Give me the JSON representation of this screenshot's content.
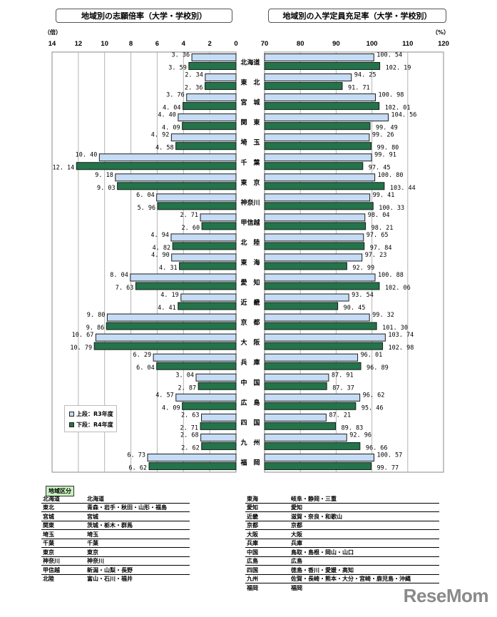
{
  "chart_data": [
    {
      "type": "bar",
      "orientation": "horizontal",
      "title": "地域別の志願倍率（大学・学校別）",
      "unit_label": "（倍）",
      "xlim": [
        0,
        14
      ],
      "x_reversed": true,
      "ticks": [
        "14",
        "12",
        "10",
        "8",
        "6",
        "4",
        "2",
        "0"
      ],
      "categories": [
        "北海道",
        "東　北",
        "宮　城",
        "関　東",
        "埼　玉",
        "千　葉",
        "東　京",
        "神奈川",
        "甲信越",
        "北　陸",
        "東　海",
        "愛　知",
        "近　畿",
        "京　都",
        "大　阪",
        "兵　庫",
        "中　国",
        "広　島",
        "四　国",
        "九　州",
        "福　岡"
      ],
      "series": [
        {
          "name": "上段：R3年度",
          "values": [
            3.36,
            2.34,
            3.76,
            4.4,
            4.92,
            10.4,
            9.18,
            6.04,
            2.71,
            4.94,
            4.9,
            8.04,
            4.19,
            9.8,
            10.67,
            6.29,
            3.04,
            4.57,
            2.63,
            2.68,
            6.73
          ],
          "labels": [
            "3. 36",
            "2. 34",
            "3. 76",
            "4. 40",
            "4. 92",
            "10. 40",
            "9. 18",
            "6. 04",
            "2. 71",
            "4. 94",
            "4. 90",
            "8. 04",
            "4. 19",
            "9. 80",
            "10. 67",
            "6. 29",
            "3. 04",
            "4. 57",
            "2. 63",
            "2. 68",
            "6. 73"
          ]
        },
        {
          "name": "下段：R4年度",
          "values": [
            3.59,
            2.36,
            4.04,
            4.09,
            4.58,
            12.14,
            9.03,
            5.96,
            2.6,
            4.82,
            4.31,
            7.63,
            4.41,
            9.86,
            10.79,
            6.04,
            2.87,
            4.09,
            2.71,
            2.62,
            6.62
          ],
          "labels": [
            "3. 59",
            "2. 36",
            "4. 04",
            "4. 09",
            "4. 58",
            "12. 14",
            "9. 03",
            "5. 96",
            "2. 60",
            "4. 82",
            "4. 31",
            "7. 63",
            "4. 41",
            "9. 86",
            "10. 79",
            "6. 04",
            "2. 87",
            "4. 09",
            "2. 71",
            "2. 62",
            "6. 62"
          ]
        }
      ],
      "grid": true,
      "legend": "bottom-left"
    },
    {
      "type": "bar",
      "orientation": "horizontal",
      "title": "地域別の入学定員充足率（大学・学校別）",
      "unit_label": "（%）",
      "xlim": [
        70,
        120
      ],
      "ticks": [
        "70",
        "80",
        "90",
        "100",
        "110",
        "120"
      ],
      "categories": [
        "北海道",
        "東　北",
        "宮　城",
        "関　東",
        "埼　玉",
        "千　葉",
        "東　京",
        "神奈川",
        "甲信越",
        "北　陸",
        "東　海",
        "愛　知",
        "近　畿",
        "京　都",
        "大　阪",
        "兵　庫",
        "中　国",
        "広　島",
        "四　国",
        "九　州",
        "福　岡"
      ],
      "series": [
        {
          "name": "上段：R3年度",
          "values": [
            100.54,
            94.25,
            100.98,
            104.56,
            99.26,
            99.91,
            100.8,
            99.41,
            98.04,
            97.65,
            97.23,
            100.88,
            93.54,
            99.32,
            103.74,
            96.01,
            87.91,
            96.62,
            87.21,
            92.96,
            100.57
          ],
          "labels": [
            "100. 54",
            "94. 25",
            "100. 98",
            "104. 56",
            "99. 26",
            "99. 91",
            "100. 80",
            "99. 41",
            "98. 04",
            "97. 65",
            "97. 23",
            "100. 88",
            "93. 54",
            "99. 32",
            "103. 74",
            "96. 01",
            "87. 91",
            "96. 62",
            "87. 21",
            "92. 96",
            "100. 57"
          ]
        },
        {
          "name": "下段：R4年度",
          "values": [
            102.19,
            91.71,
            102.01,
            99.49,
            99.8,
            97.45,
            103.44,
            100.33,
            98.21,
            97.84,
            92.99,
            102.06,
            90.45,
            101.3,
            102.98,
            96.89,
            87.37,
            95.46,
            89.83,
            96.66,
            99.77
          ],
          "labels": [
            "102. 19",
            "91. 71",
            "102. 01",
            "99. 49",
            "99. 80",
            "97. 45",
            "103. 44",
            "100. 33",
            "98. 21",
            "97. 84",
            "92. 99",
            "102. 06",
            "90. 45",
            "101. 30",
            "102. 98",
            "96. 89",
            "87. 37",
            "95. 46",
            "89. 83",
            "96. 66",
            "99. 77"
          ]
        }
      ],
      "grid": true
    }
  ],
  "legend": {
    "items": [
      "上段：R3年度",
      "下段：R4年度"
    ],
    "colors": [
      "#c6dcf5",
      "#23744a"
    ]
  },
  "colors": {
    "r3_fill": "#c6dcf5",
    "r4_fill": "#23744a",
    "bar_stroke": "#1b1b1b",
    "grid": "#b4b4b4"
  },
  "region_table": {
    "heading": "地域区分",
    "left": [
      [
        "北海道",
        "北海道"
      ],
      [
        "東北",
        "青森・岩手・秋田・山形・福島"
      ],
      [
        "宮城",
        "宮城"
      ],
      [
        "関東",
        "茨城・栃木・群馬"
      ],
      [
        "埼玉",
        "埼玉"
      ],
      [
        "千葉",
        "千葉"
      ],
      [
        "東京",
        "東京"
      ],
      [
        "神奈川",
        "神奈川"
      ],
      [
        "甲信越",
        "新潟・山梨・長野"
      ],
      [
        "北陸",
        "富山・石川・福井"
      ]
    ],
    "right": [
      [
        "東海",
        "岐阜・静岡・三重"
      ],
      [
        "愛知",
        "愛知"
      ],
      [
        "近畿",
        "滋賀・奈良・和歌山"
      ],
      [
        "京都",
        "京都"
      ],
      [
        "大阪",
        "大阪"
      ],
      [
        "兵庫",
        "兵庫"
      ],
      [
        "中国",
        "鳥取・島根・岡山・山口"
      ],
      [
        "広島",
        "広島"
      ],
      [
        "四国",
        "徳島・香川・愛媛・高知"
      ],
      [
        "九州",
        "佐賀・長崎・熊本・大分・宮崎・鹿児島・沖縄"
      ],
      [
        "福岡",
        "福岡"
      ]
    ]
  },
  "watermark": "ReseMom"
}
